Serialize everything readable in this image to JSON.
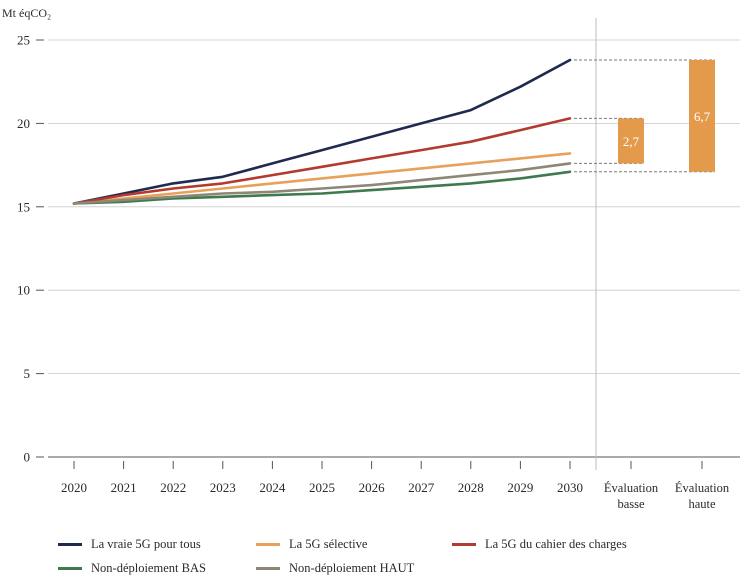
{
  "chart_data": {
    "type": "line",
    "unit": "Mt éqCO₂",
    "x": [
      "2020",
      "2021",
      "2022",
      "2023",
      "2024",
      "2025",
      "2026",
      "2027",
      "2028",
      "2029",
      "2030"
    ],
    "ylim": [
      0,
      25
    ],
    "yticks": [
      "0",
      "5",
      "10",
      "15",
      "20",
      "25"
    ],
    "grid": true,
    "series": [
      {
        "name": "La vraie 5G pour tous",
        "color": "#1f2a4f",
        "values": [
          15.2,
          15.8,
          16.4,
          16.8,
          17.6,
          18.4,
          19.2,
          20.0,
          20.8,
          22.2,
          23.8
        ]
      },
      {
        "name": "La 5G sélective",
        "color": "#e8a15a",
        "values": [
          15.2,
          15.5,
          15.8,
          16.1,
          16.4,
          16.7,
          17.0,
          17.3,
          17.6,
          17.9,
          18.2
        ]
      },
      {
        "name": "La 5G du cahier des charges",
        "color": "#b33a2e",
        "values": [
          15.2,
          15.7,
          16.1,
          16.4,
          16.9,
          17.4,
          17.9,
          18.4,
          18.9,
          19.6,
          20.3
        ]
      },
      {
        "name": "Non-déploiement BAS",
        "color": "#3f7a4e",
        "values": [
          15.2,
          15.3,
          15.5,
          15.6,
          15.7,
          15.8,
          16.0,
          16.2,
          16.4,
          16.7,
          17.1
        ]
      },
      {
        "name": "Non-déploiement HAUT",
        "color": "#8c8776",
        "values": [
          15.2,
          15.4,
          15.6,
          15.8,
          15.9,
          16.1,
          16.3,
          16.6,
          16.9,
          17.2,
          17.6
        ]
      }
    ],
    "evaluations": [
      {
        "label_line1": "Évaluation",
        "label_line2": "basse",
        "low": 17.6,
        "high": 20.3,
        "value_label": "2,7",
        "color": "#e39a4b"
      },
      {
        "label_line1": "Évaluation",
        "label_line2": "haute",
        "low": 17.1,
        "high": 23.8,
        "value_label": "6,7",
        "color": "#e39a4b"
      }
    ],
    "legend": [
      [
        "La vraie 5G pour tous",
        "La 5G sélective",
        "La 5G du cahier des charges"
      ],
      [
        "Non-déploiement BAS",
        "Non-déploiement HAUT"
      ]
    ]
  }
}
